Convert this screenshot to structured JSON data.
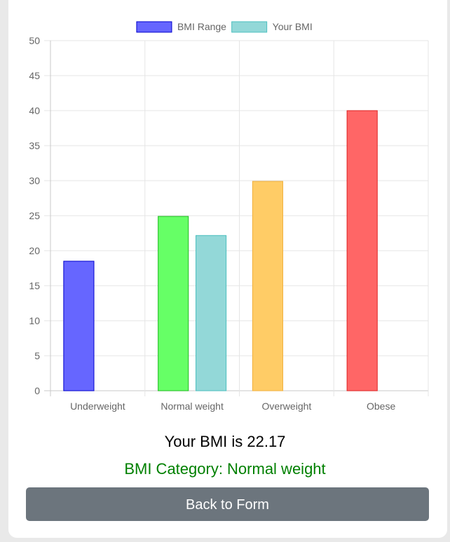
{
  "chart_data": {
    "type": "bar",
    "categories": [
      "Underweight",
      "Normal weight",
      "Overweight",
      "Obese"
    ],
    "series": [
      {
        "name": "BMI Range",
        "values": [
          18.5,
          24.9,
          29.9,
          40
        ],
        "fill_colors": [
          "#6666ff",
          "#66ff66",
          "#ffcc66",
          "#ff6666"
        ],
        "border_colors": [
          "#0000cc",
          "#22bb22",
          "#f0b040",
          "#dd2222"
        ],
        "legend_fill": "#6666ff",
        "legend_border": "#0000cc"
      },
      {
        "name": "Your BMI",
        "values": [
          null,
          22.17,
          null,
          null
        ],
        "fill_colors": [
          "#93d8d8",
          "#93d8d8",
          "#93d8d8",
          "#93d8d8"
        ],
        "border_colors": [
          "#4bbfbf",
          "#4bbfbf",
          "#4bbfbf",
          "#4bbfbf"
        ],
        "legend_fill": "#93d8d8",
        "legend_border": "#4bbfbf"
      }
    ],
    "ylim": [
      0,
      50
    ],
    "yticks": [
      0,
      5,
      10,
      15,
      20,
      25,
      30,
      35,
      40,
      45,
      50
    ],
    "grid": true,
    "legend_position": "top-center",
    "title": "",
    "xlabel": "",
    "ylabel": ""
  },
  "result": {
    "bmi_text": "Your BMI is 22.17",
    "category_text": "BMI Category: Normal weight",
    "category_color": "#008000"
  },
  "back_button_label": "Back to Form"
}
